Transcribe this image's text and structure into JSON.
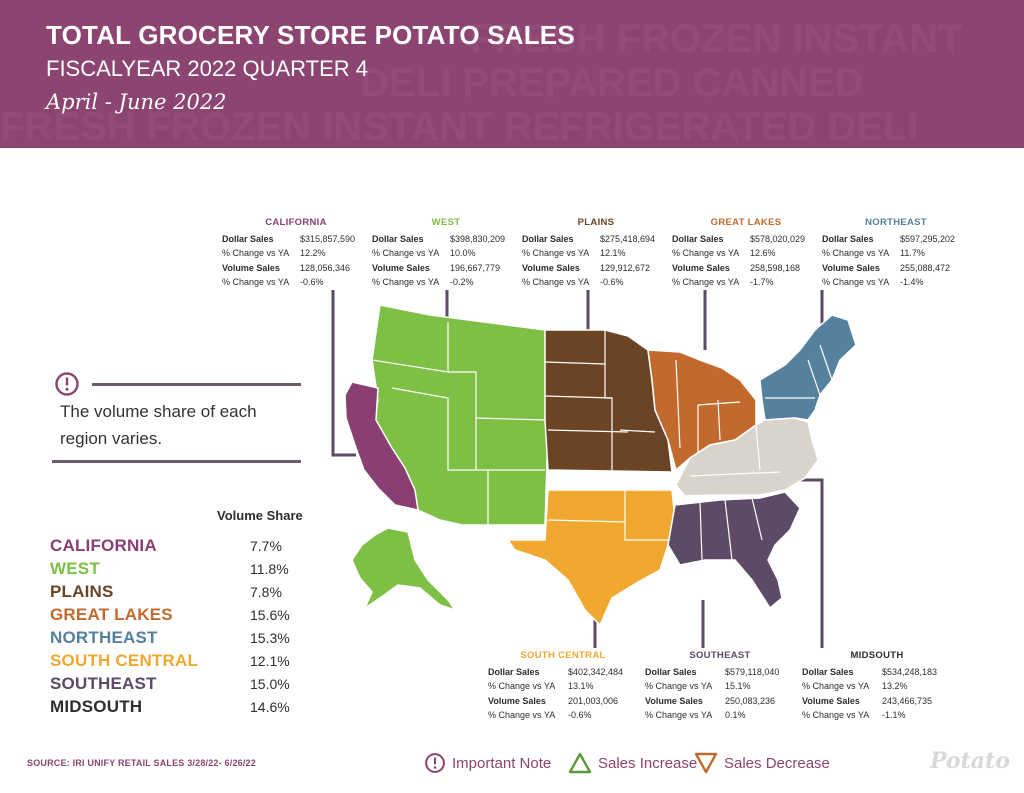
{
  "header": {
    "title": "TOTAL GROCERY STORE POTATO SALES",
    "subtitle": "FISCALYEAR 2022 QUARTER 4",
    "date_range": "April - June 2022",
    "background_words": "FRESH FROZEN INSTANT REFRIGERATED DELI PREPARED CANNED"
  },
  "colors": {
    "header": "#8c4470",
    "california": "#8a3f72",
    "west": "#7ebf45",
    "plains": "#6b4425",
    "great_lakes": "#c26a2e",
    "northeast": "#55809e",
    "south_central": "#f0a830",
    "southeast": "#5c4a66",
    "midsouth": "#d8d4cc",
    "increase": "#5a9a3a",
    "decrease": "#c0392b"
  },
  "labels": {
    "dollar_sales": "Dollar Sales",
    "pct_change": "% Change vs YA",
    "volume_sales": "Volume Sales"
  },
  "regions": {
    "california": {
      "name": "CALIFORNIA",
      "dollar_sales": "$315,857,590",
      "dollar_change": "12.2%",
      "volume_sales": "128,056,346",
      "volume_change": "-0.6%"
    },
    "west": {
      "name": "WEST",
      "dollar_sales": "$398,830,209",
      "dollar_change": "10.0%",
      "volume_sales": "196,667,779",
      "volume_change": "-0.2%"
    },
    "plains": {
      "name": "PLAINS",
      "dollar_sales": "$275,418,694",
      "dollar_change": "12.1%",
      "volume_sales": "129,912,672",
      "volume_change": "-0.6%"
    },
    "great_lakes": {
      "name": "GREAT LAKES",
      "dollar_sales": "$578,020,029",
      "dollar_change": "12.6%",
      "volume_sales": "258,598,168",
      "volume_change": "-1.7%"
    },
    "northeast": {
      "name": "NORTHEAST",
      "dollar_sales": "$597,295,202",
      "dollar_change": "11.7%",
      "volume_sales": "255,088,472",
      "volume_change": "-1.4%"
    },
    "south_central": {
      "name": "SOUTH CENTRAL",
      "dollar_sales": "$402,342,484",
      "dollar_change": "13.1%",
      "volume_sales": "201,003,006",
      "volume_change": "-0.6%"
    },
    "southeast": {
      "name": "SOUTHEAST",
      "dollar_sales": "$579,118,040",
      "dollar_change": "15.1%",
      "volume_sales": "250,083,236",
      "volume_change": "0.1%"
    },
    "midsouth": {
      "name": "MIDSOUTH",
      "dollar_sales": "$534,248,183",
      "dollar_change": "13.2%",
      "volume_sales": "243,466,735",
      "volume_change": "-1.1%"
    }
  },
  "note": {
    "text": "The volume share of each region varies."
  },
  "volume_share": {
    "heading": "Volume Share",
    "rows": [
      {
        "name": "CALIFORNIA",
        "value": "7.7%"
      },
      {
        "name": "WEST",
        "value": "11.8%"
      },
      {
        "name": "PLAINS",
        "value": "7.8%"
      },
      {
        "name": "GREAT LAKES",
        "value": "15.6%"
      },
      {
        "name": "NORTHEAST",
        "value": "15.3%"
      },
      {
        "name": "SOUTH CENTRAL",
        "value": "12.1%"
      },
      {
        "name": "SOUTHEAST",
        "value": "15.0%"
      },
      {
        "name": "MIDSOUTH",
        "value": "14.6%"
      }
    ]
  },
  "footer": {
    "source": "SOURCE: IRI UNIFY RETAIL SALES 3/28/22- 6/26/22",
    "legend_note": "Important Note",
    "legend_increase": "Sales Increase",
    "legend_decrease": "Sales Decrease",
    "logo": "Potato"
  }
}
